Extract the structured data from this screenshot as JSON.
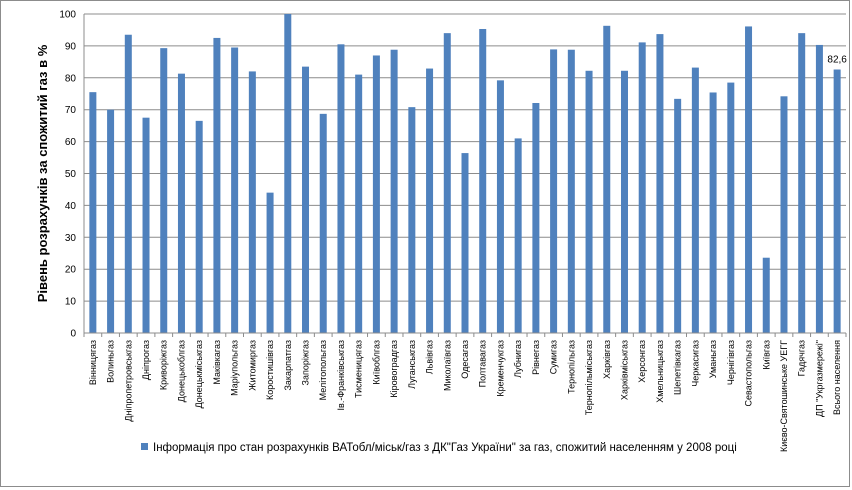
{
  "colors": {
    "bar": "#4f81bd",
    "grid": "#8c8c8c",
    "axis": "#8c8c8c"
  },
  "chart_data": {
    "type": "bar",
    "ylabel": "Рівень розрахунків за спожитий газ в %",
    "ylim": [
      0,
      100
    ],
    "yticks": [
      0,
      10,
      20,
      30,
      40,
      50,
      60,
      70,
      80,
      90,
      100
    ],
    "grid": true,
    "legend_position": "bottom",
    "series": [
      {
        "name": "Інформація про стан розрахунків ВАТобл/міськ/газ з ДК\"Газ України\" за газ, спожитий населенням у 2008 році",
        "values": [
          75.5,
          70,
          93.5,
          67.5,
          89.3,
          81.3,
          66.5,
          92.5,
          89.5,
          82,
          44,
          100,
          83.5,
          68.7,
          90.5,
          81,
          87,
          88.8,
          70.8,
          82.9,
          94,
          56.4,
          95.3,
          79.2,
          61,
          72.1,
          88.9,
          88.8,
          82.2,
          96.3,
          82.2,
          91.1,
          93.7,
          73.4,
          83.2,
          75.4,
          78.5,
          96.1,
          23.6,
          74.2,
          94,
          90.3,
          82.6
        ]
      }
    ],
    "categories": [
      "Вінницягаз",
      "Волиньгаз",
      "Дніпропетровськгаз",
      "Дніпрогаз",
      "Криворіжгаз",
      "Донецькоблгаз",
      "Донецькміськгаз",
      "Маківкагаз",
      "Маріупольгаз",
      "Житомиргаз",
      "Коростишівгаз",
      "Закарпатгаз",
      "Запоріжгаз",
      "Мелітопольгаз",
      "Ів.-Франківськгаз",
      "Тисменицягаз",
      "Київоблгаз",
      "Кіровоградгаз",
      "Луганськгаз",
      "Львівгаз",
      "Миколаївгаз",
      "Одесагаз",
      "Полтавагаз",
      "Кременчукгаз",
      "Лубнигаз",
      "Рівнегаз",
      "Сумигаз",
      "Тернопільгаз",
      "Тернопільміськгаз",
      "Харківгаз",
      "Харківміськгаз",
      "Херсонгаз",
      "Хмельницькгаз",
      "Шепетівкагаз",
      "Черкасигаз",
      "Уманьгаз",
      "Чернігівгаз",
      "Севастопольгаз",
      "Київгаз",
      "Києво-Святошинське УЕГГ",
      "Гадячгаз",
      "ДП \"Укргазмережі\"",
      "Всього населення"
    ],
    "data_labels": [
      {
        "category_index": 42,
        "text": "82,6"
      }
    ]
  }
}
